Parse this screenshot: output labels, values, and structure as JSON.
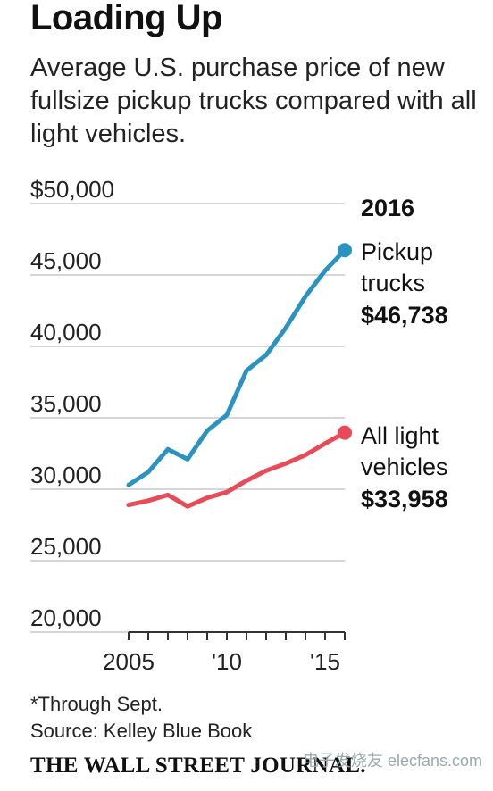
{
  "title": "Loading Up",
  "subtitle": "Average U.S. purchase price of new fullsize pickup trucks compared with all light vehicles.",
  "footnote": "*Through Sept.",
  "source": "Source: Kelley Blue Book",
  "brand": "THE WALL STREET JOURNAL.",
  "watermark": "电子发烧友 elecfans.com",
  "chart_data": {
    "type": "line",
    "title": "Loading Up",
    "x": [
      2005,
      2006,
      2007,
      2008,
      2009,
      2010,
      2011,
      2012,
      2013,
      2014,
      2015,
      2016
    ],
    "xticks": [
      2005,
      2010,
      2015
    ],
    "xtick_labels": [
      "2005",
      "'10",
      "'15"
    ],
    "ylim": [
      20000,
      50000
    ],
    "yticks": [
      20000,
      25000,
      30000,
      35000,
      40000,
      45000,
      50000
    ],
    "ytick_labels": [
      "20,000",
      "25,000",
      "30,000",
      "35,000",
      "40,000",
      "45,000",
      "$50,000"
    ],
    "grid": true,
    "series": [
      {
        "name": "Pickup trucks",
        "color": "#2b93c1",
        "values": [
          30300,
          31200,
          32800,
          32100,
          34100,
          35200,
          38300,
          39400,
          41300,
          43500,
          45300,
          46738
        ]
      },
      {
        "name": "All light vehicles",
        "color": "#e84b57",
        "values": [
          28900,
          29200,
          29600,
          28800,
          29400,
          29800,
          30600,
          31300,
          31800,
          32400,
          33200,
          33958
        ]
      }
    ],
    "annotations": {
      "year": "2016",
      "pickup_label_1": "Pickup",
      "pickup_label_2": "trucks",
      "pickup_value": "$46,738",
      "light_label_1": "All light",
      "light_label_2": "vehicles",
      "light_value": "$33,958"
    }
  }
}
